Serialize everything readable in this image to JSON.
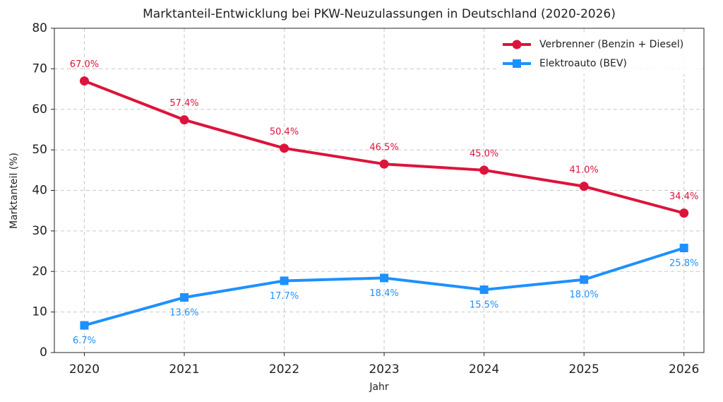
{
  "chart_data": {
    "type": "line",
    "title": "Marktanteil-Entwicklung bei PKW-Neuzulassungen in Deutschland (2020-2026)",
    "x_label": "Jahr",
    "y_label": "Marktanteil (%)",
    "x": [
      2020,
      2021,
      2022,
      2023,
      2024,
      2025,
      2026
    ],
    "xlim": [
      2019.7,
      2026.2
    ],
    "xticks": [
      2020,
      2021,
      2022,
      2023,
      2024,
      2025,
      2026
    ],
    "ylim": [
      0,
      80
    ],
    "yticks": [
      0,
      10,
      20,
      30,
      40,
      50,
      60,
      70,
      80
    ],
    "grid": true,
    "legend": "upper right",
    "series": [
      {
        "name": "Verbrenner (Benzin + Diesel)",
        "color": "#dc143c",
        "marker": "circle",
        "label_position": "above",
        "values": [
          67.0,
          57.4,
          50.4,
          46.5,
          45.0,
          41.0,
          34.4
        ],
        "value_labels": [
          "67.0%",
          "57.4%",
          "50.4%",
          "46.5%",
          "45.0%",
          "41.0%",
          "34.4%"
        ]
      },
      {
        "name": "Elektroauto (BEV)",
        "color": "#1e90ff",
        "marker": "square",
        "label_position": "below",
        "values": [
          6.7,
          13.6,
          17.7,
          18.4,
          15.5,
          18.0,
          25.8
        ],
        "value_labels": [
          "6.7%",
          "13.6%",
          "17.7%",
          "18.4%",
          "15.5%",
          "18.0%",
          "25.8%"
        ]
      }
    ]
  }
}
